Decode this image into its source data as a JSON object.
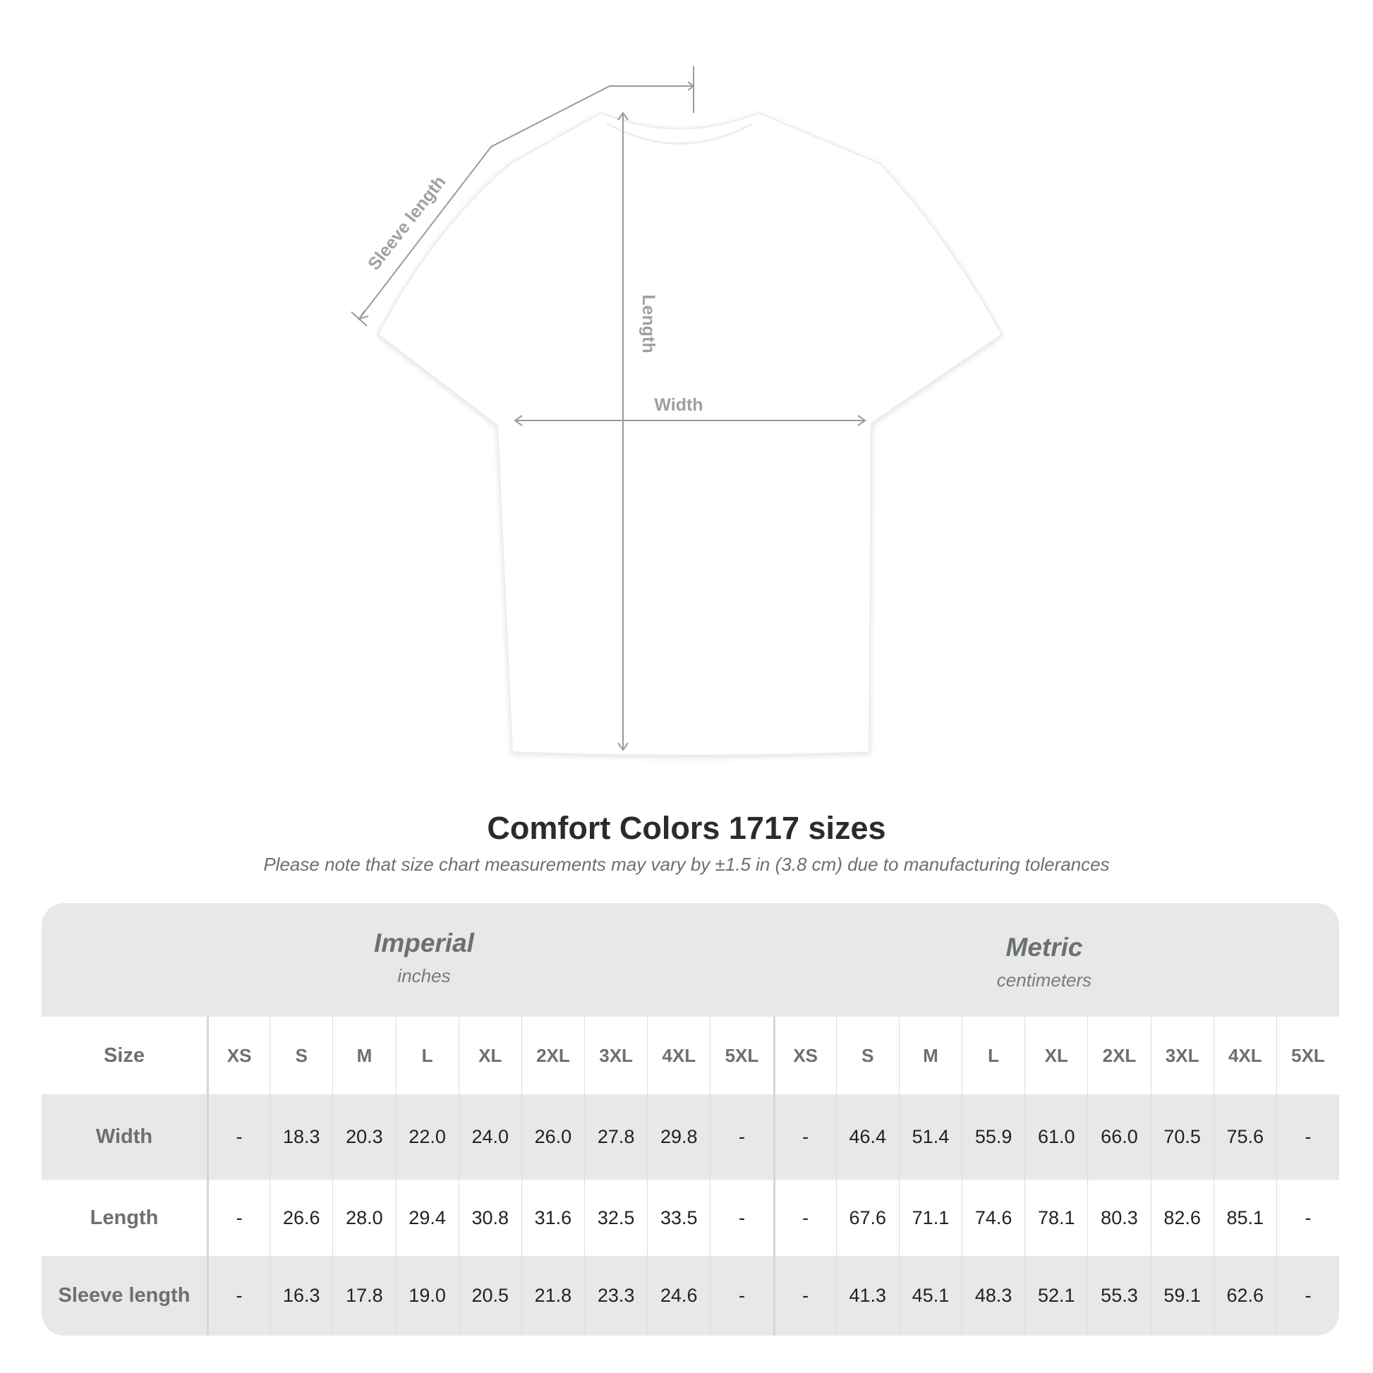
{
  "diagram": {
    "labels": {
      "sleeve": "Sleeve length",
      "length": "Length",
      "width": "Width"
    },
    "shirt_color": "#ffffff",
    "line_color": "#9a9a9a"
  },
  "title": "Comfort Colors 1717 sizes",
  "note": "Please note that size chart measurements may vary by ±1.5 in (3.8 cm) due to manufacturing tolerances",
  "table": {
    "systems": [
      {
        "name": "Imperial",
        "unit": "inches"
      },
      {
        "name": "Metric",
        "unit": "centimeters"
      }
    ],
    "size_header": "Size",
    "sizes": [
      "XS",
      "S",
      "M",
      "L",
      "XL",
      "2XL",
      "3XL",
      "4XL",
      "5XL"
    ],
    "rows": [
      {
        "label": "Width",
        "imperial": [
          "-",
          "18.3",
          "20.3",
          "22.0",
          "24.0",
          "26.0",
          "27.8",
          "29.8",
          "-"
        ],
        "metric": [
          "-",
          "46.4",
          "51.4",
          "55.9",
          "61.0",
          "66.0",
          "70.5",
          "75.6",
          "-"
        ]
      },
      {
        "label": "Length",
        "imperial": [
          "-",
          "26.6",
          "28.0",
          "29.4",
          "30.8",
          "31.6",
          "32.5",
          "33.5",
          "-"
        ],
        "metric": [
          "-",
          "67.6",
          "71.1",
          "74.6",
          "78.1",
          "80.3",
          "82.6",
          "85.1",
          "-"
        ]
      },
      {
        "label": "Sleeve length",
        "imperial": [
          "-",
          "16.3",
          "17.8",
          "19.0",
          "20.5",
          "21.8",
          "23.3",
          "24.6",
          "-"
        ],
        "metric": [
          "-",
          "41.3",
          "45.1",
          "48.3",
          "52.1",
          "55.3",
          "59.1",
          "62.6",
          "-"
        ]
      }
    ]
  }
}
